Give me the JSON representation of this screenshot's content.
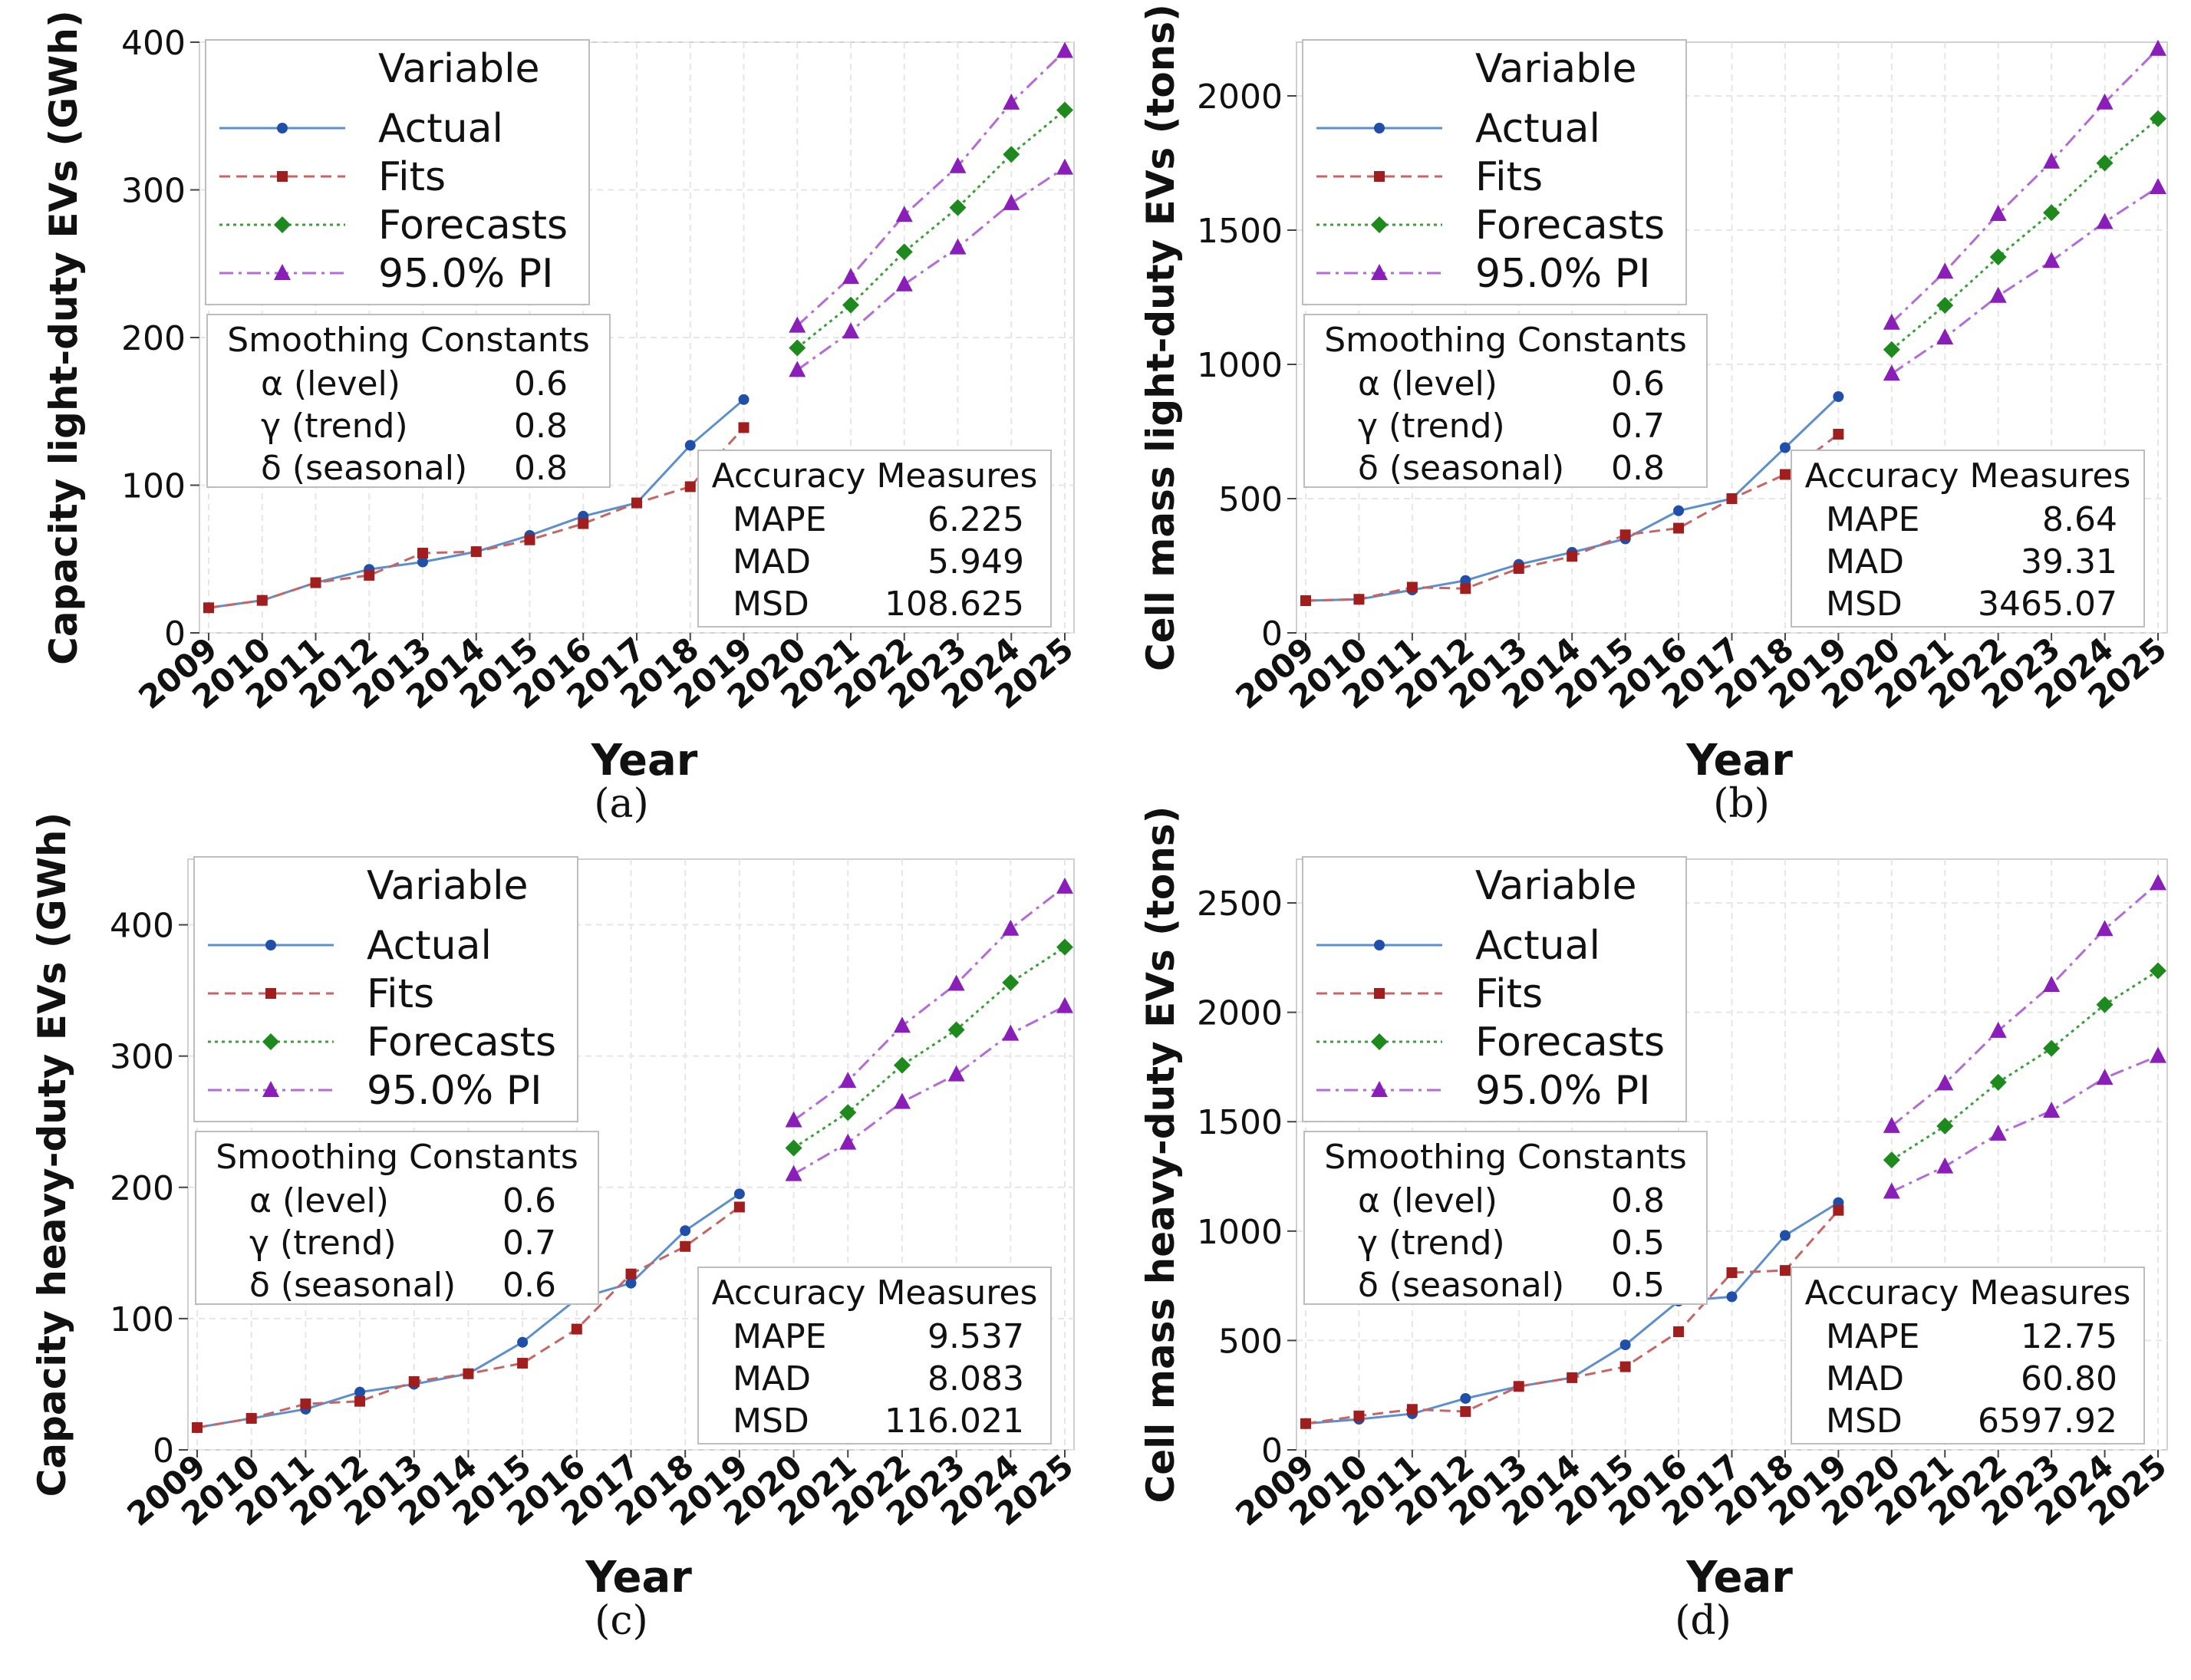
{
  "chart_data": [
    {
      "type": "line",
      "panel": "(a)",
      "ylabel": "Capacity light-duty EVs (GWh)",
      "xlabel": "Year",
      "categories": [
        "2009",
        "2010",
        "2011",
        "2012",
        "2013",
        "2014",
        "2015",
        "2016",
        "2017",
        "2018",
        "2019",
        "2020",
        "2021",
        "2022",
        "2023",
        "2024",
        "2025"
      ],
      "ylim": [
        0,
        400
      ],
      "yticks": [
        0,
        100,
        200,
        300,
        400
      ],
      "grid": true,
      "legend_title": "Variable",
      "series": [
        {
          "name": "Actual",
          "values": [
            17,
            22,
            34,
            43,
            48,
            55,
            66,
            79,
            88,
            127,
            158,
            null,
            null,
            null,
            null,
            null,
            null
          ]
        },
        {
          "name": "Fits",
          "values": [
            17,
            22,
            34,
            39,
            54,
            55,
            63,
            74,
            88,
            99,
            139,
            null,
            null,
            null,
            null,
            null,
            null
          ]
        },
        {
          "name": "Forecasts",
          "values": [
            null,
            null,
            null,
            null,
            null,
            null,
            null,
            null,
            null,
            null,
            null,
            193,
            222,
            258,
            288,
            324,
            354
          ]
        },
        {
          "name": "95.0% PI",
          "values": [
            null,
            null,
            null,
            null,
            null,
            null,
            null,
            null,
            null,
            null,
            null,
            208,
            241,
            283,
            316,
            359,
            394
          ]
        },
        {
          "name": "95.0% PI (lower)",
          "values": [
            null,
            null,
            null,
            null,
            null,
            null,
            null,
            null,
            null,
            null,
            null,
            178,
            204,
            236,
            261,
            291,
            315
          ]
        }
      ],
      "smoothing": {
        "title": "Smoothing Constants",
        "rows": [
          [
            "α (level)",
            "0.6"
          ],
          [
            "γ (trend)",
            "0.8"
          ],
          [
            "δ (seasonal)",
            "0.8"
          ]
        ]
      },
      "accuracy": {
        "title": "Accuracy Measures",
        "rows": [
          [
            "MAPE",
            "6.225"
          ],
          [
            "MAD",
            "5.949"
          ],
          [
            "MSD",
            "108.625"
          ]
        ]
      }
    },
    {
      "type": "line",
      "panel": "(b)",
      "ylabel": "Cell mass light-duty EVs (tons)",
      "xlabel": "Year",
      "categories": [
        "2009",
        "2010",
        "2011",
        "2012",
        "2013",
        "2014",
        "2015",
        "2016",
        "2017",
        "2018",
        "2019",
        "2020",
        "2021",
        "2022",
        "2023",
        "2024",
        "2025"
      ],
      "ylim": [
        0,
        2200
      ],
      "yticks": [
        0,
        500,
        1000,
        1500,
        2000
      ],
      "grid": true,
      "legend_title": "Variable",
      "series": [
        {
          "name": "Actual",
          "values": [
            120,
            125,
            160,
            195,
            255,
            300,
            350,
            455,
            500,
            690,
            880,
            null,
            null,
            null,
            null,
            null,
            null
          ]
        },
        {
          "name": "Fits",
          "values": [
            120,
            125,
            170,
            165,
            240,
            285,
            365,
            390,
            500,
            590,
            740,
            null,
            null,
            null,
            null,
            null,
            null
          ]
        },
        {
          "name": "Forecasts",
          "values": [
            null,
            null,
            null,
            null,
            null,
            null,
            null,
            null,
            null,
            null,
            null,
            1055,
            1220,
            1400,
            1565,
            1750,
            1915
          ]
        },
        {
          "name": "95.0% PI",
          "values": [
            null,
            null,
            null,
            null,
            null,
            null,
            null,
            null,
            null,
            null,
            null,
            1155,
            1345,
            1560,
            1755,
            1975,
            2175
          ]
        },
        {
          "name": "95.0% PI (lower)",
          "values": [
            null,
            null,
            null,
            null,
            null,
            null,
            null,
            null,
            null,
            null,
            null,
            965,
            1100,
            1255,
            1385,
            1530,
            1660
          ]
        }
      ],
      "smoothing": {
        "title": "Smoothing Constants",
        "rows": [
          [
            "α (level)",
            "0.6"
          ],
          [
            "γ (trend)",
            "0.7"
          ],
          [
            "δ (seasonal)",
            "0.8"
          ]
        ]
      },
      "accuracy": {
        "title": "Accuracy Measures",
        "rows": [
          [
            "MAPE",
            "8.64"
          ],
          [
            "MAD",
            "39.31"
          ],
          [
            "MSD",
            "3465.07"
          ]
        ]
      }
    },
    {
      "type": "line",
      "panel": "(c)",
      "ylabel": "Capacity heavy-duty EVs (GWh)",
      "xlabel": "Year",
      "categories": [
        "2009",
        "2010",
        "2011",
        "2012",
        "2013",
        "2014",
        "2015",
        "2016",
        "2017",
        "2018",
        "2019",
        "2020",
        "2021",
        "2022",
        "2023",
        "2024",
        "2025"
      ],
      "ylim": [
        0,
        450
      ],
      "yticks": [
        0,
        100,
        200,
        300,
        400
      ],
      "grid": true,
      "legend_title": "Variable",
      "series": [
        {
          "name": "Actual",
          "values": [
            17,
            24,
            31,
            44,
            50,
            58,
            82,
            115,
            127,
            167,
            195,
            null,
            null,
            null,
            null,
            null,
            null
          ]
        },
        {
          "name": "Fits",
          "values": [
            17,
            24,
            35,
            37,
            52,
            58,
            66,
            92,
            134,
            155,
            185,
            null,
            null,
            null,
            null,
            null,
            null
          ]
        },
        {
          "name": "Forecasts",
          "values": [
            null,
            null,
            null,
            null,
            null,
            null,
            null,
            null,
            null,
            null,
            null,
            230,
            257,
            293,
            320,
            356,
            383
          ]
        },
        {
          "name": "95.0% PI",
          "values": [
            null,
            null,
            null,
            null,
            null,
            null,
            null,
            null,
            null,
            null,
            null,
            251,
            281,
            323,
            355,
            397,
            429
          ]
        },
        {
          "name": "95.0% PI (lower)",
          "values": [
            null,
            null,
            null,
            null,
            null,
            null,
            null,
            null,
            null,
            null,
            null,
            210,
            234,
            265,
            286,
            317,
            338
          ]
        }
      ],
      "smoothing": {
        "title": "Smoothing Constants",
        "rows": [
          [
            "α (level)",
            "0.6"
          ],
          [
            "γ (trend)",
            "0.7"
          ],
          [
            "δ (seasonal)",
            "0.6"
          ]
        ]
      },
      "accuracy": {
        "title": "Accuracy Measures",
        "rows": [
          [
            "MAPE",
            "9.537"
          ],
          [
            "MAD",
            "8.083"
          ],
          [
            "MSD",
            "116.021"
          ]
        ]
      }
    },
    {
      "type": "line",
      "panel": "(d)",
      "ylabel": "Cell mass heavy-duty EVs (tons)",
      "xlabel": "Year",
      "categories": [
        "2009",
        "2010",
        "2011",
        "2012",
        "2013",
        "2014",
        "2015",
        "2016",
        "2017",
        "2018",
        "2019",
        "2020",
        "2021",
        "2022",
        "2023",
        "2024",
        "2025"
      ],
      "ylim": [
        0,
        2700
      ],
      "yticks": [
        0,
        500,
        1000,
        1500,
        2000,
        2500
      ],
      "grid": true,
      "legend_title": "Variable",
      "series": [
        {
          "name": "Actual",
          "values": [
            120,
            140,
            165,
            235,
            290,
            330,
            480,
            680,
            700,
            980,
            1130,
            null,
            null,
            null,
            null,
            null,
            null
          ]
        },
        {
          "name": "Fits",
          "values": [
            120,
            155,
            185,
            175,
            290,
            330,
            380,
            540,
            810,
            820,
            1095,
            null,
            null,
            null,
            null,
            null,
            null
          ]
        },
        {
          "name": "Forecasts",
          "values": [
            null,
            null,
            null,
            null,
            null,
            null,
            null,
            null,
            null,
            null,
            null,
            1325,
            1480,
            1680,
            1835,
            2035,
            2190
          ]
        },
        {
          "name": "95.0% PI",
          "values": [
            null,
            null,
            null,
            null,
            null,
            null,
            null,
            null,
            null,
            null,
            null,
            1480,
            1675,
            1915,
            2125,
            2380,
            2590
          ]
        },
        {
          "name": "95.0% PI (lower)",
          "values": [
            null,
            null,
            null,
            null,
            null,
            null,
            null,
            null,
            null,
            null,
            null,
            1180,
            1295,
            1445,
            1550,
            1700,
            1800
          ]
        }
      ],
      "smoothing": {
        "title": "Smoothing Constants",
        "rows": [
          [
            "α (level)",
            "0.8"
          ],
          [
            "γ (trend)",
            "0.5"
          ],
          [
            "δ (seasonal)",
            "0.5"
          ]
        ]
      },
      "accuracy": {
        "title": "Accuracy Measures",
        "rows": [
          [
            "MAPE",
            "12.75"
          ],
          [
            "MAD",
            "60.80"
          ],
          [
            "MSD",
            "6597.92"
          ]
        ]
      }
    }
  ]
}
